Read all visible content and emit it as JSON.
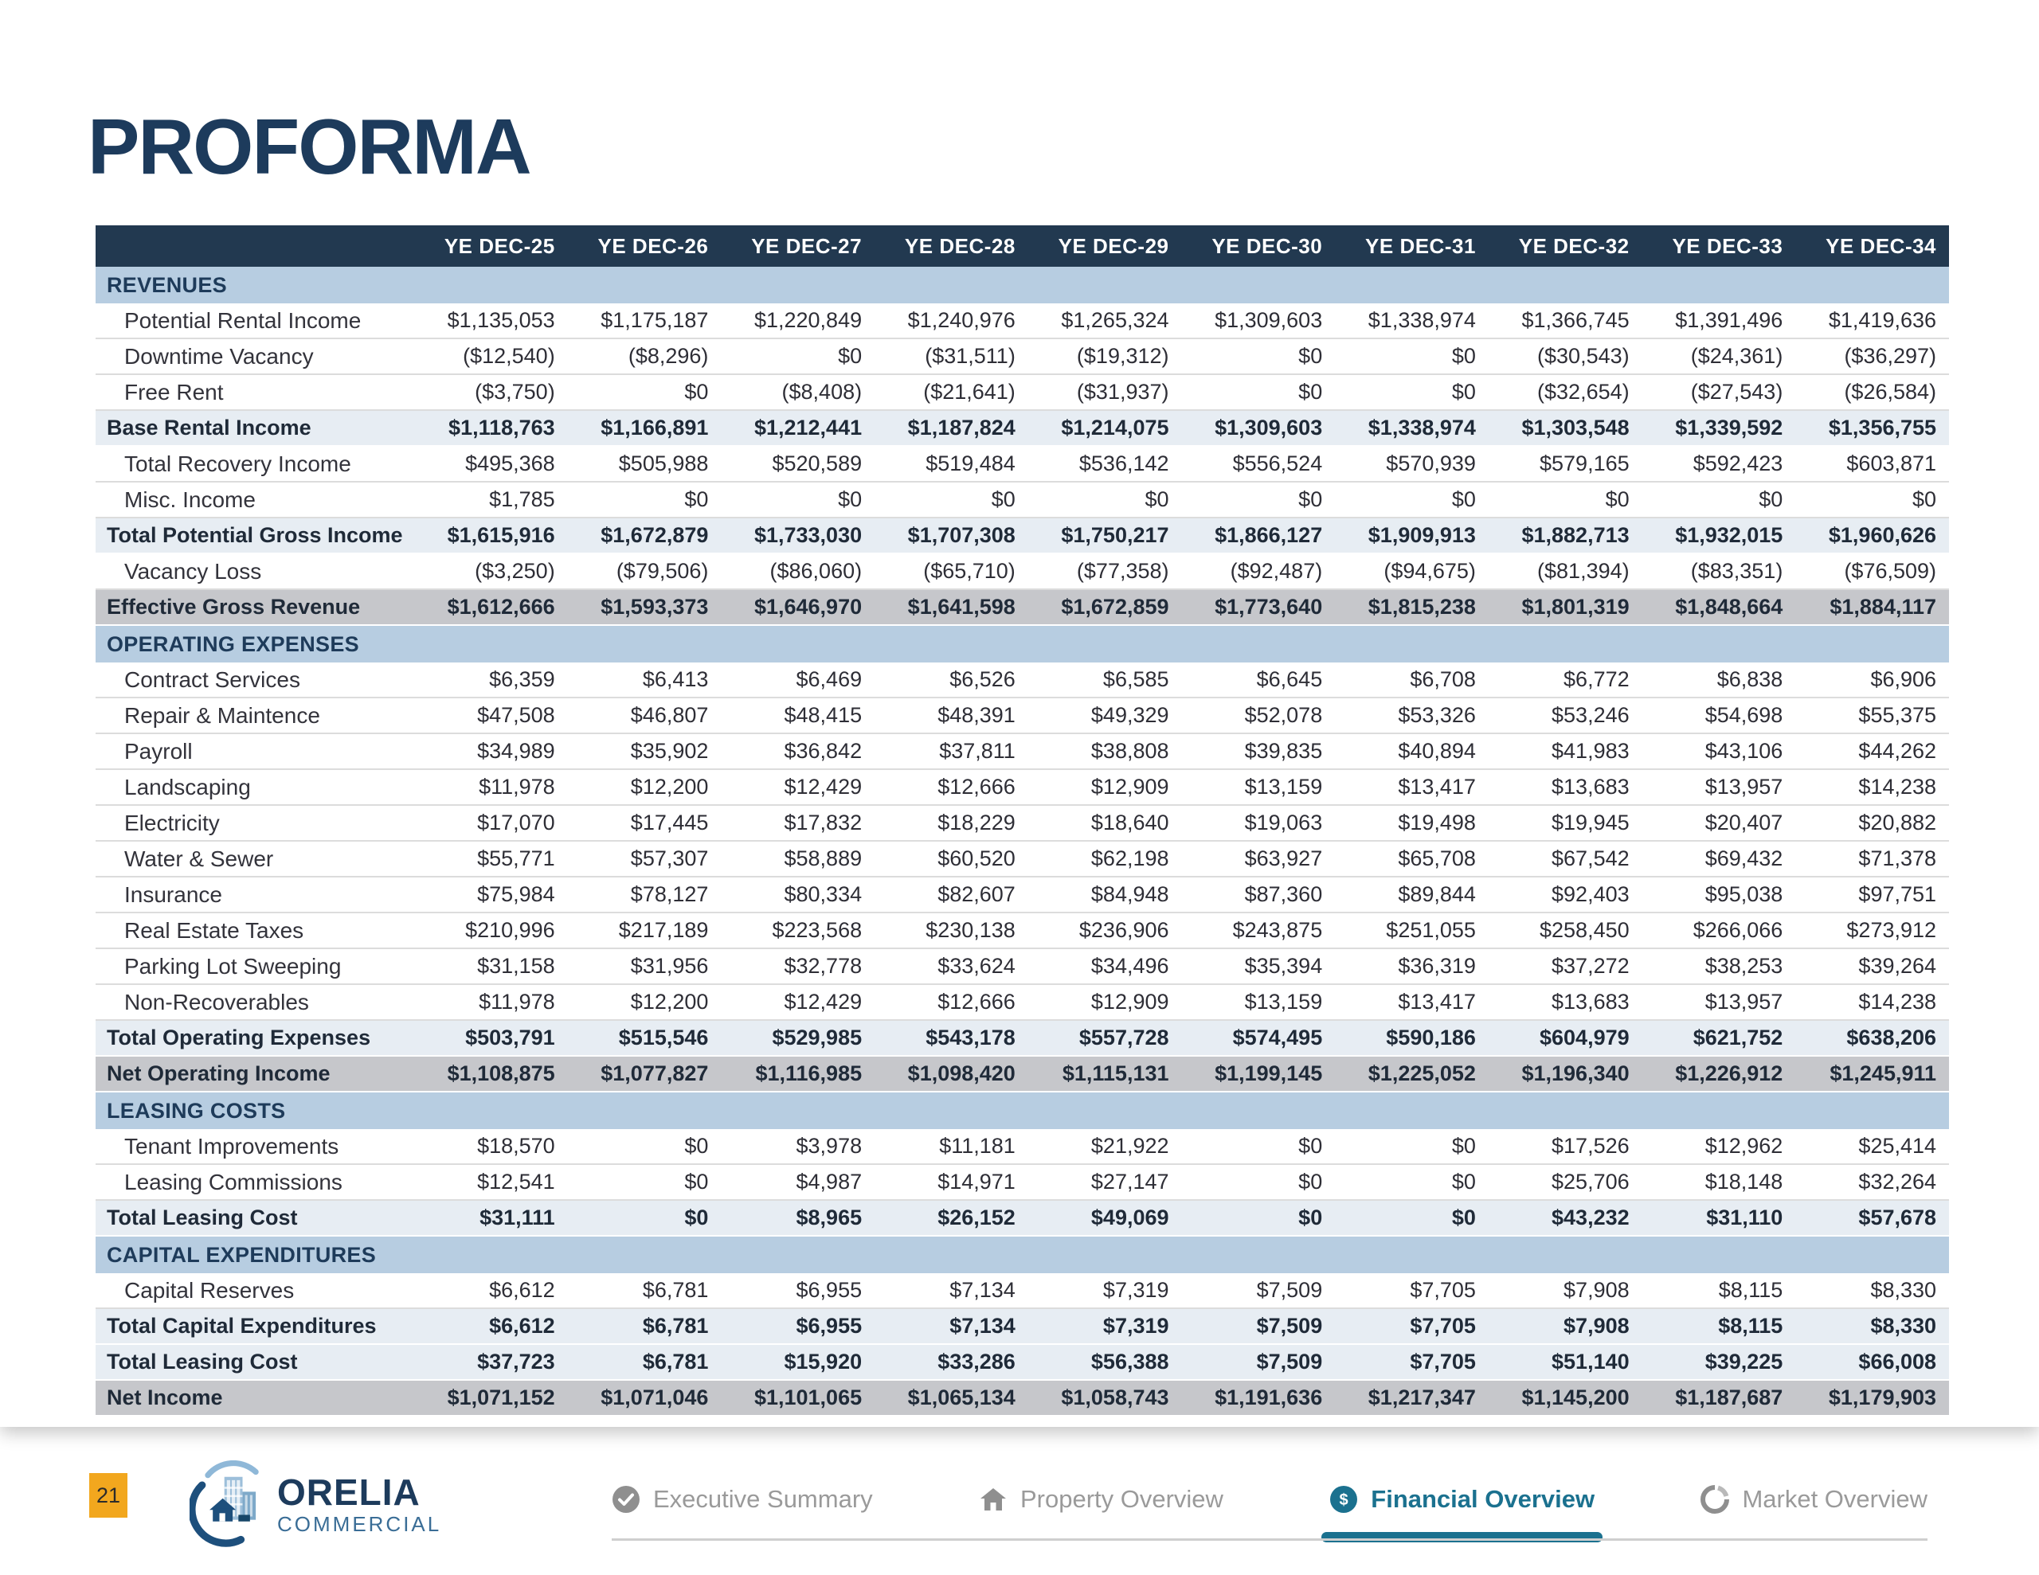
{
  "title": "PROFORMA",
  "table": {
    "columns": [
      "YE DEC-25",
      "YE DEC-26",
      "YE DEC-27",
      "YE DEC-28",
      "YE DEC-29",
      "YE DEC-30",
      "YE DEC-31",
      "YE DEC-32",
      "YE DEC-33",
      "YE DEC-34"
    ],
    "rows": [
      {
        "type": "section",
        "label": "REVENUES"
      },
      {
        "type": "detail",
        "label": "Potential Rental Income",
        "values": [
          "$1,135,053",
          "$1,175,187",
          "$1,220,849",
          "$1,240,976",
          "$1,265,324",
          "$1,309,603",
          "$1,338,974",
          "$1,366,745",
          "$1,391,496",
          "$1,419,636"
        ]
      },
      {
        "type": "detail",
        "label": "Downtime Vacancy",
        "values": [
          "($12,540)",
          "($8,296)",
          "$0",
          "($31,511)",
          "($19,312)",
          "$0",
          "$0",
          "($30,543)",
          "($24,361)",
          "($36,297)"
        ]
      },
      {
        "type": "detail",
        "label": "Free Rent",
        "values": [
          "($3,750)",
          "$0",
          "($8,408)",
          "($21,641)",
          "($31,937)",
          "$0",
          "$0",
          "($32,654)",
          "($27,543)",
          "($26,584)"
        ]
      },
      {
        "type": "subtotal",
        "label": "Base Rental Income",
        "values": [
          "$1,118,763",
          "$1,166,891",
          "$1,212,441",
          "$1,187,824",
          "$1,214,075",
          "$1,309,603",
          "$1,338,974",
          "$1,303,548",
          "$1,339,592",
          "$1,356,755"
        ]
      },
      {
        "type": "detail",
        "label": "Total Recovery Income",
        "values": [
          "$495,368",
          "$505,988",
          "$520,589",
          "$519,484",
          "$536,142",
          "$556,524",
          "$570,939",
          "$579,165",
          "$592,423",
          "$603,871"
        ]
      },
      {
        "type": "detail",
        "label": "Misc. Income",
        "values": [
          "$1,785",
          "$0",
          "$0",
          "$0",
          "$0",
          "$0",
          "$0",
          "$0",
          "$0",
          "$0"
        ]
      },
      {
        "type": "subtotal",
        "label": "Total Potential Gross Income",
        "values": [
          "$1,615,916",
          "$1,672,879",
          "$1,733,030",
          "$1,707,308",
          "$1,750,217",
          "$1,866,127",
          "$1,909,913",
          "$1,882,713",
          "$1,932,015",
          "$1,960,626"
        ]
      },
      {
        "type": "detail",
        "label": "Vacancy Loss",
        "values": [
          "($3,250)",
          "($79,506)",
          "($86,060)",
          "($65,710)",
          "($77,358)",
          "($92,487)",
          "($94,675)",
          "($81,394)",
          "($83,351)",
          "($76,509)"
        ]
      },
      {
        "type": "total",
        "label": "Effective Gross Revenue",
        "values": [
          "$1,612,666",
          "$1,593,373",
          "$1,646,970",
          "$1,641,598",
          "$1,672,859",
          "$1,773,640",
          "$1,815,238",
          "$1,801,319",
          "$1,848,664",
          "$1,884,117"
        ]
      },
      {
        "type": "section",
        "label": "OPERATING EXPENSES"
      },
      {
        "type": "detail",
        "label": "Contract Services",
        "values": [
          "$6,359",
          "$6,413",
          "$6,469",
          "$6,526",
          "$6,585",
          "$6,645",
          "$6,708",
          "$6,772",
          "$6,838",
          "$6,906"
        ]
      },
      {
        "type": "detail",
        "label": "Repair & Maintence",
        "values": [
          "$47,508",
          "$46,807",
          "$48,415",
          "$48,391",
          "$49,329",
          "$52,078",
          "$53,326",
          "$53,246",
          "$54,698",
          "$55,375"
        ]
      },
      {
        "type": "detail",
        "label": "Payroll",
        "values": [
          "$34,989",
          "$35,902",
          "$36,842",
          "$37,811",
          "$38,808",
          "$39,835",
          "$40,894",
          "$41,983",
          "$43,106",
          "$44,262"
        ]
      },
      {
        "type": "detail",
        "label": "Landscaping",
        "values": [
          "$11,978",
          "$12,200",
          "$12,429",
          "$12,666",
          "$12,909",
          "$13,159",
          "$13,417",
          "$13,683",
          "$13,957",
          "$14,238"
        ]
      },
      {
        "type": "detail",
        "label": "Electricity",
        "values": [
          "$17,070",
          "$17,445",
          "$17,832",
          "$18,229",
          "$18,640",
          "$19,063",
          "$19,498",
          "$19,945",
          "$20,407",
          "$20,882"
        ]
      },
      {
        "type": "detail",
        "label": "Water & Sewer",
        "values": [
          "$55,771",
          "$57,307",
          "$58,889",
          "$60,520",
          "$62,198",
          "$63,927",
          "$65,708",
          "$67,542",
          "$69,432",
          "$71,378"
        ]
      },
      {
        "type": "detail",
        "label": "Insurance",
        "values": [
          "$75,984",
          "$78,127",
          "$80,334",
          "$82,607",
          "$84,948",
          "$87,360",
          "$89,844",
          "$92,403",
          "$95,038",
          "$97,751"
        ]
      },
      {
        "type": "detail",
        "label": "Real Estate Taxes",
        "values": [
          "$210,996",
          "$217,189",
          "$223,568",
          "$230,138",
          "$236,906",
          "$243,875",
          "$251,055",
          "$258,450",
          "$266,066",
          "$273,912"
        ]
      },
      {
        "type": "detail",
        "label": "Parking Lot Sweeping",
        "values": [
          "$31,158",
          "$31,956",
          "$32,778",
          "$33,624",
          "$34,496",
          "$35,394",
          "$36,319",
          "$37,272",
          "$38,253",
          "$39,264"
        ]
      },
      {
        "type": "detail",
        "label": "Non-Recoverables",
        "values": [
          "$11,978",
          "$12,200",
          "$12,429",
          "$12,666",
          "$12,909",
          "$13,159",
          "$13,417",
          "$13,683",
          "$13,957",
          "$14,238"
        ]
      },
      {
        "type": "subtotal",
        "label": "Total Operating Expenses",
        "values": [
          "$503,791",
          "$515,546",
          "$529,985",
          "$543,178",
          "$557,728",
          "$574,495",
          "$590,186",
          "$604,979",
          "$621,752",
          "$638,206"
        ]
      },
      {
        "type": "total",
        "label": "Net Operating Income",
        "values": [
          "$1,108,875",
          "$1,077,827",
          "$1,116,985",
          "$1,098,420",
          "$1,115,131",
          "$1,199,145",
          "$1,225,052",
          "$1,196,340",
          "$1,226,912",
          "$1,245,911"
        ]
      },
      {
        "type": "section",
        "label": "LEASING COSTS"
      },
      {
        "type": "detail",
        "label": "Tenant Improvements",
        "values": [
          "$18,570",
          "$0",
          "$3,978",
          "$11,181",
          "$21,922",
          "$0",
          "$0",
          "$17,526",
          "$12,962",
          "$25,414"
        ]
      },
      {
        "type": "detail",
        "label": "Leasing Commissions",
        "values": [
          "$12,541",
          "$0",
          "$4,987",
          "$14,971",
          "$27,147",
          "$0",
          "$0",
          "$25,706",
          "$18,148",
          "$32,264"
        ]
      },
      {
        "type": "subtotal",
        "label": "Total Leasing Cost",
        "values": [
          "$31,111",
          "$0",
          "$8,965",
          "$26,152",
          "$49,069",
          "$0",
          "$0",
          "$43,232",
          "$31,110",
          "$57,678"
        ]
      },
      {
        "type": "section",
        "label": "CAPITAL EXPENDITURES"
      },
      {
        "type": "detail",
        "label": "Capital Reserves",
        "values": [
          "$6,612",
          "$6,781",
          "$6,955",
          "$7,134",
          "$7,319",
          "$7,509",
          "$7,705",
          "$7,908",
          "$8,115",
          "$8,330"
        ]
      },
      {
        "type": "subtotal",
        "label": "Total Capital Expenditures",
        "values": [
          "$6,612",
          "$6,781",
          "$6,955",
          "$7,134",
          "$7,319",
          "$7,509",
          "$7,705",
          "$7,908",
          "$8,115",
          "$8,330"
        ]
      },
      {
        "type": "subtotal",
        "label": "Total Leasing Cost",
        "values": [
          "$37,723",
          "$6,781",
          "$15,920",
          "$33,286",
          "$56,388",
          "$7,509",
          "$7,705",
          "$51,140",
          "$39,225",
          "$66,008"
        ]
      },
      {
        "type": "total",
        "label": "Net Income",
        "values": [
          "$1,071,152",
          "$1,071,046",
          "$1,101,065",
          "$1,065,134",
          "$1,058,743",
          "$1,191,636",
          "$1,217,347",
          "$1,145,200",
          "$1,187,687",
          "$1,179,903"
        ]
      }
    ]
  },
  "footer": {
    "page_number": "21",
    "logo": {
      "name": "ORELIA",
      "sub": "COMMERCIAL"
    },
    "nav": [
      {
        "label": "Executive Summary",
        "icon": "check-circle-icon",
        "active": false
      },
      {
        "label": "Property Overview",
        "icon": "home-icon",
        "active": false
      },
      {
        "label": "Financial Overview",
        "icon": "dollar-circle-icon",
        "active": true
      },
      {
        "label": "Market Overview",
        "icon": "pie-chart-icon",
        "active": false
      }
    ]
  },
  "colors": {
    "header_bg": "#223950",
    "section_bg": "#b7cde1",
    "subtotal_bg": "#e7edf3",
    "total_bg": "#c6c7cb",
    "navy": "#1d3b5c",
    "accent_teal": "#1b718f",
    "badge_orange": "#f2a71e",
    "inactive_gray": "#9a9a9a"
  }
}
